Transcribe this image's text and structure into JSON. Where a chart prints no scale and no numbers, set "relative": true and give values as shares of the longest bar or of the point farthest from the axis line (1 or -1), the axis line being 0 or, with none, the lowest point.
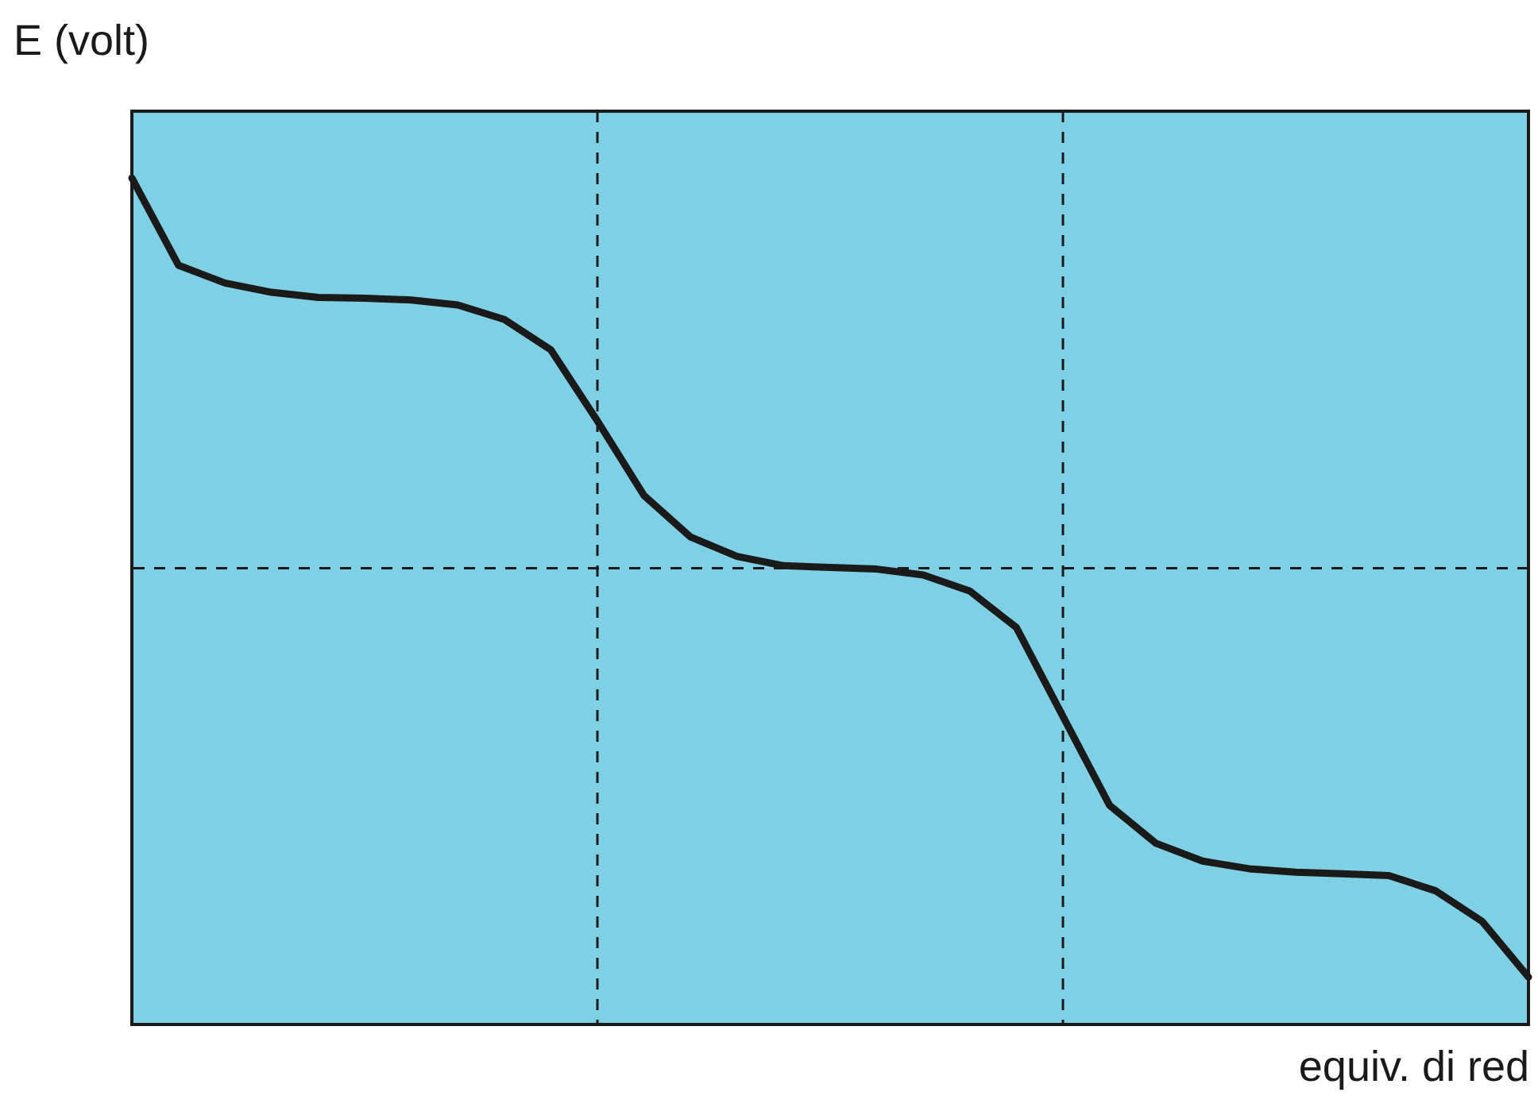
{
  "chart_data": {
    "type": "line",
    "relative": true,
    "xlabel": "equiv. di red",
    "ylabel": "E (volt)",
    "categories": [
      null,
      null,
      null,
      null,
      null,
      null,
      null,
      null,
      null,
      null,
      null,
      null,
      null,
      null,
      null,
      null,
      null,
      null,
      null,
      null,
      null,
      null,
      null,
      null,
      null,
      null,
      null,
      null,
      null,
      null,
      null
    ],
    "series": [
      {
        "color": "#1a1a1a",
        "values": [
          1,
          0.897,
          0.876,
          0.865,
          0.859,
          0.858,
          0.856,
          0.85,
          0.833,
          0.797,
          0.713,
          0.625,
          0.576,
          0.553,
          0.542,
          0.54,
          0.538,
          0.531,
          0.512,
          0.469,
          0.364,
          0.259,
          0.214,
          0.193,
          0.184,
          0.18,
          0.178,
          0.176,
          0.158,
          0.122,
          0.056
        ]
      }
    ],
    "ref_lines": [
      {
        "axis": "y",
        "value": 0.539,
        "color": "#1a1a1a",
        "line_style": "dashed"
      }
    ],
    "marker": "none",
    "line_style": "solid"
  }
}
